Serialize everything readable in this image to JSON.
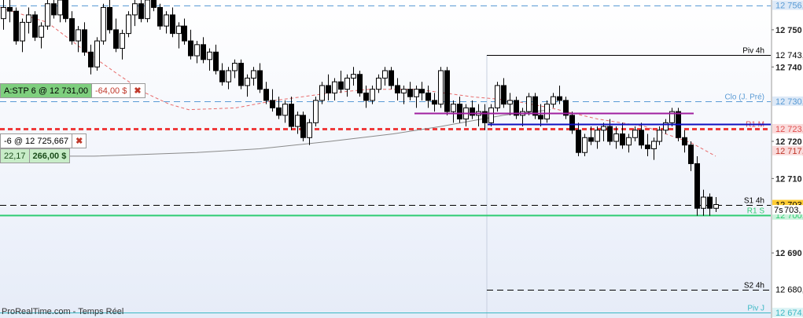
{
  "chart_data": {
    "type": "candlestick",
    "ylim": [
      12672.5,
      12758
    ],
    "axis_ticks": [
      {
        "label": "12 750",
        "value": 12750
      },
      {
        "label": "12 740",
        "value": 12740
      },
      {
        "label": "12 720",
        "value": 12720
      },
      {
        "label": "12 710",
        "value": 12710
      },
      {
        "label": "12 690",
        "value": 12690
      }
    ],
    "levels": [
      {
        "name": "Piv 4h",
        "value": 12743.2,
        "axis_label": "12 743,",
        "color": "#000000",
        "style": "solid",
        "label_color": "#000000",
        "tag_bg": "#ffffff"
      },
      {
        "name": "Clo (J. Pré)",
        "value": 12730.8,
        "axis_label": "12 730,",
        "color": "#5a9bd5",
        "style": "dashed",
        "label_color": "#5a9bd5",
        "tag_bg": "#dde9f7"
      },
      {
        "name": "R1 M",
        "value": 12723.4,
        "axis_label": "12 723,",
        "color": "#ef3b3b",
        "style": "dashed",
        "label_color": "#e05050",
        "tag_bg": "#fadcdc"
      },
      {
        "name": "",
        "value": 12717.5,
        "axis_label": "12 717,",
        "color": "#ff6464",
        "style": "none",
        "label_color": "#c0392b",
        "tag_bg": "#fadcdc"
      },
      {
        "name": "S1 4h",
        "value": 12703.0,
        "axis_label": "12 703,",
        "color": "#000000",
        "style": "dashed",
        "label_color": "#000000",
        "tag_bg": "#ffcc33"
      },
      {
        "name": "R1 S",
        "value": 12700.2,
        "axis_label": "12 700,",
        "color": "#2ecc71",
        "style": "solid",
        "label_color": "#2ecc71",
        "tag_bg": "#ccf2dc"
      },
      {
        "name": "S2 4h",
        "value": 12680.2,
        "axis_label": "12 680,",
        "color": "#000000",
        "style": "dashed",
        "label_color": "#000000",
        "tag_bg": "#ffffff"
      },
      {
        "name": "Piv J",
        "value": 12674.0,
        "axis_label": "12 674,",
        "color": "#3bb8c4",
        "style": "solid",
        "label_color": "#3bb8c4",
        "tag_bg": "#ddf3f5"
      },
      {
        "name": "",
        "value": 12756.6,
        "axis_label": "12 756,",
        "color": "#5a9bd5",
        "style": "dashed",
        "label_color": "#5a9bd5",
        "tag_bg": "#dde9f7"
      }
    ],
    "countdown": {
      "label": "7s",
      "value_text": "703,"
    },
    "candles": [
      [
        12753,
        12758,
        12750,
        12756
      ],
      [
        12756,
        12758,
        12752,
        12755
      ],
      [
        12755,
        12756,
        12746,
        12747
      ],
      [
        12747,
        12753,
        12744,
        12752
      ],
      [
        12752,
        12756,
        12749,
        12754
      ],
      [
        12754,
        12755,
        12747,
        12748
      ],
      [
        12748,
        12752,
        12745,
        12751
      ],
      [
        12751,
        12758,
        12750,
        12757
      ],
      [
        12757,
        12760,
        12753,
        12754
      ],
      [
        12754,
        12759,
        12752,
        12758
      ],
      [
        12758,
        12760,
        12752,
        12753
      ],
      [
        12753,
        12755,
        12746,
        12747
      ],
      [
        12747,
        12751,
        12744,
        12750
      ],
      [
        12750,
        12752,
        12743,
        12744
      ],
      [
        12744,
        12746,
        12738,
        12740
      ],
      [
        12740,
        12748,
        12739,
        12747
      ],
      [
        12747,
        12757,
        12746,
        12756
      ],
      [
        12756,
        12758,
        12749,
        12750
      ],
      [
        12750,
        12753,
        12744,
        12745
      ],
      [
        12745,
        12750,
        12742,
        12749
      ],
      [
        12749,
        12755,
        12748,
        12754
      ],
      [
        12754,
        12758,
        12751,
        12757
      ],
      [
        12757,
        12759,
        12752,
        12753
      ],
      [
        12753,
        12759,
        12752,
        12758
      ],
      [
        12758,
        12760,
        12755,
        12756
      ],
      [
        12756,
        12757,
        12750,
        12751
      ],
      [
        12751,
        12755,
        12749,
        12754
      ],
      [
        12754,
        12756,
        12748,
        12749
      ],
      [
        12749,
        12752,
        12745,
        12751
      ],
      [
        12751,
        12753,
        12746,
        12747
      ],
      [
        12747,
        12750,
        12742,
        12743
      ],
      [
        12743,
        12747,
        12741,
        12746
      ],
      [
        12746,
        12748,
        12741,
        12742
      ],
      [
        12742,
        12745,
        12739,
        12744
      ],
      [
        12744,
        12746,
        12738,
        12739
      ],
      [
        12739,
        12741,
        12735,
        12736
      ],
      [
        12736,
        12740,
        12734,
        12739
      ],
      [
        12739,
        12742,
        12737,
        12741
      ],
      [
        12741,
        12742,
        12734,
        12735
      ],
      [
        12735,
        12738,
        12732,
        12737
      ],
      [
        12737,
        12740,
        12735,
        12739
      ],
      [
        12739,
        12741,
        12733,
        12734
      ],
      [
        12734,
        12736,
        12730,
        12731
      ],
      [
        12731,
        12734,
        12728,
        12729
      ],
      [
        12729,
        12732,
        12726,
        12727
      ],
      [
        12727,
        12731,
        12725,
        12730
      ],
      [
        12730,
        12732,
        12723,
        12724
      ],
      [
        12724,
        12728,
        12722,
        12727
      ],
      [
        12727,
        12728,
        12720,
        12721
      ],
      [
        12721,
        12726,
        12719,
        12725
      ],
      [
        12725,
        12732,
        12724,
        12731
      ],
      [
        12731,
        12736,
        12730,
        12735
      ],
      [
        12735,
        12738,
        12731,
        12733
      ],
      [
        12733,
        12737,
        12731,
        12736
      ],
      [
        12736,
        12739,
        12733,
        12734
      ],
      [
        12734,
        12738,
        12732,
        12737
      ],
      [
        12737,
        12740,
        12735,
        12738
      ],
      [
        12738,
        12739,
        12732,
        12733
      ],
      [
        12733,
        12735,
        12729,
        12731
      ],
      [
        12731,
        12735,
        12730,
        12734
      ],
      [
        12734,
        12738,
        12733,
        12737
      ],
      [
        12737,
        12740,
        12735,
        12739
      ],
      [
        12739,
        12740,
        12734,
        12735
      ],
      [
        12735,
        12737,
        12731,
        12733
      ],
      [
        12733,
        12735,
        12730,
        12734
      ],
      [
        12734,
        12736,
        12731,
        12732
      ],
      [
        12732,
        12735,
        12729,
        12734
      ],
      [
        12734,
        12736,
        12731,
        12733
      ],
      [
        12733,
        12735,
        12729,
        12731
      ],
      [
        12731,
        12733,
        12728,
        12730
      ],
      [
        12730,
        12740,
        12729,
        12739
      ],
      [
        12739,
        12740,
        12727,
        12728
      ],
      [
        12728,
        12731,
        12725,
        12730
      ],
      [
        12730,
        12732,
        12725,
        12726
      ],
      [
        12726,
        12730,
        12724,
        12729
      ],
      [
        12729,
        12731,
        12726,
        12727
      ],
      [
        12727,
        12730,
        12724,
        12728
      ],
      [
        12728,
        12730,
        12723,
        12725
      ],
      [
        12725,
        12730,
        12724,
        12729
      ],
      [
        12729,
        12736,
        12728,
        12735
      ],
      [
        12735,
        12737,
        12729,
        12730
      ],
      [
        12730,
        12733,
        12727,
        12731
      ],
      [
        12731,
        12732,
        12726,
        12727
      ],
      [
        12727,
        12729,
        12724,
        12728
      ],
      [
        12728,
        12733,
        12727,
        12732
      ],
      [
        12732,
        12733,
        12726,
        12727
      ],
      [
        12727,
        12730,
        12724,
        12726
      ],
      [
        12726,
        12731,
        12725,
        12730
      ],
      [
        12730,
        12733,
        12729,
        12732
      ],
      [
        12732,
        12735,
        12730,
        12731
      ],
      [
        12731,
        12732,
        12726,
        12727
      ],
      [
        12727,
        12728,
        12722,
        12723
      ],
      [
        12723,
        12725,
        12716,
        12717
      ],
      [
        12717,
        12722,
        12716,
        12721
      ],
      [
        12721,
        12724,
        12719,
        12720
      ],
      [
        12720,
        12724,
        12718,
        12723
      ],
      [
        12723,
        12725,
        12720,
        12724
      ],
      [
        12724,
        12726,
        12719,
        12720
      ],
      [
        12720,
        12724,
        12718,
        12722
      ],
      [
        12722,
        12725,
        12718,
        12719
      ],
      [
        12719,
        12722,
        12717,
        12721
      ],
      [
        12721,
        12724,
        12720,
        12723
      ],
      [
        12723,
        12725,
        12718,
        12719
      ],
      [
        12719,
        12722,
        12716,
        12718
      ],
      [
        12718,
        12721,
        12715,
        12720
      ],
      [
        12720,
        12724,
        12719,
        12723
      ],
      [
        12723,
        12726,
        12722,
        12725
      ],
      [
        12725,
        12729,
        12724,
        12728
      ],
      [
        12728,
        12729,
        12720,
        12721
      ],
      [
        12721,
        12723,
        12717,
        12719
      ],
      [
        12719,
        12720,
        12712,
        12714
      ],
      [
        12714,
        12716,
        12700,
        12702
      ],
      [
        12702,
        12707,
        12700,
        12705
      ],
      [
        12705,
        12706,
        12700,
        12702
      ],
      [
        12702,
        12705,
        12701,
        12703
      ]
    ],
    "ma_red": [
      [
        0,
        12756
      ],
      [
        60,
        12752
      ],
      [
        110,
        12744
      ],
      [
        150,
        12738
      ],
      [
        185,
        12733
      ],
      [
        215,
        12730
      ],
      [
        240,
        12728.5
      ],
      [
        300,
        12729
      ],
      [
        350,
        12731
      ],
      [
        420,
        12733
      ],
      [
        470,
        12734
      ],
      [
        530,
        12734
      ],
      [
        600,
        12732
      ],
      [
        650,
        12731
      ],
      [
        700,
        12729
      ],
      [
        760,
        12726
      ],
      [
        820,
        12724
      ],
      [
        860,
        12721
      ],
      [
        880,
        12719.5
      ],
      [
        910,
        12716
      ]
    ],
    "ma_gray": [
      [
        0,
        12716
      ],
      [
        120,
        12716
      ],
      [
        250,
        12717
      ],
      [
        330,
        12718
      ],
      [
        420,
        12720
      ],
      [
        500,
        12722
      ],
      [
        560,
        12724
      ],
      [
        600,
        12725.5
      ],
      [
        640,
        12727
      ],
      [
        700,
        12728.5
      ]
    ],
    "segments": [
      {
        "x1": 527,
        "x2": 882,
        "value": 12727.5,
        "color": "#a020a0",
        "width": 2
      },
      {
        "x1": 620,
        "x2": 980,
        "value": 12724.6,
        "color": "#1010c0",
        "width": 2
      }
    ],
    "vlines": [
      619
    ],
    "orders": [
      {
        "name": "A:STP  6 @ 12 731,00",
        "pnl": "-64,00 $",
        "close": "✖"
      },
      {
        "name": "-6 @ 12 725,667",
        "close": "✖",
        "qty": "22,17",
        "pnl": "266,00 $"
      }
    ]
  },
  "footer": "ProRealTime.com - Temps Réel"
}
